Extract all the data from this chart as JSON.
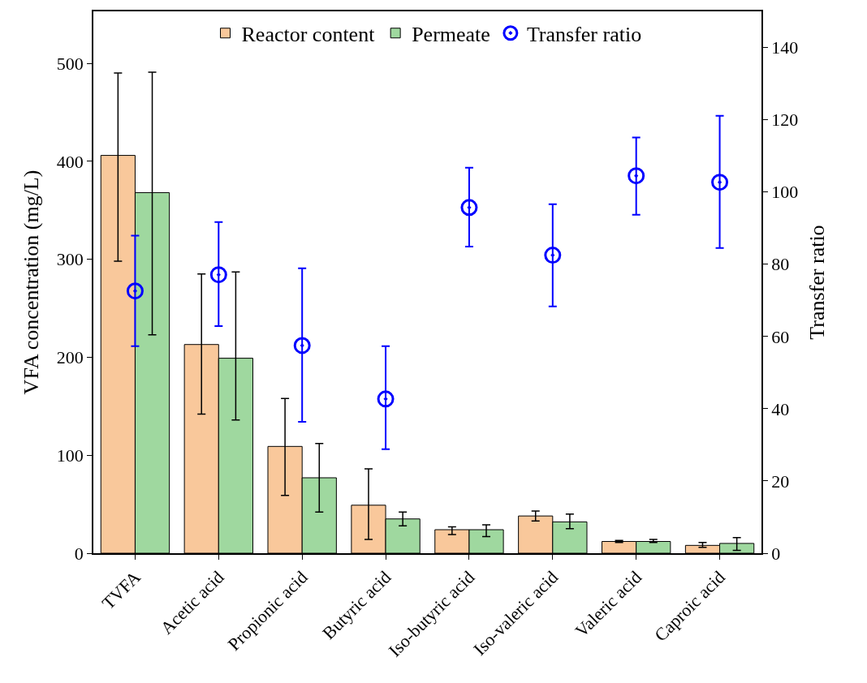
{
  "chart_data": {
    "type": "bar",
    "ylabel": "VFA concentration (mg/L)",
    "y2label": "Transfer ratio",
    "categories": [
      "TVFA",
      "Acetic acid",
      "Propionic acid",
      "Butyric acid",
      "Iso-butyric acid",
      "Iso-valeric acid",
      "Valeric acid",
      "Caproic acid"
    ],
    "series": [
      {
        "name": "Reactor content",
        "color": "#f9c89b",
        "values": [
          406,
          213,
          109,
          49,
          24,
          38,
          12,
          8
        ],
        "errors": [
          [
            298,
            490
          ],
          [
            142,
            285
          ],
          [
            59,
            158
          ],
          [
            14,
            86
          ],
          [
            19,
            27
          ],
          [
            33,
            43
          ],
          [
            11,
            13
          ],
          [
            6,
            11
          ]
        ]
      },
      {
        "name": "Permeate",
        "color": "#9fd89f",
        "values": [
          368,
          199,
          77,
          35,
          24,
          32,
          12,
          10
        ],
        "errors": [
          [
            223,
            491
          ],
          [
            136,
            287
          ],
          [
            42,
            112
          ],
          [
            28,
            42
          ],
          [
            17,
            29
          ],
          [
            25,
            40
          ],
          [
            11,
            14
          ],
          [
            3,
            16
          ]
        ]
      },
      {
        "name": "Transfer ratio",
        "type": "scatter",
        "axis": "y2",
        "color": "#0000ff",
        "marker": "circle",
        "values": [
          72.6,
          77.1,
          57.5,
          42.7,
          95.7,
          82.5,
          104.5,
          102.7
        ],
        "errors": [
          [
            57.3,
            87.9
          ],
          [
            62.9,
            91.7
          ],
          [
            36.4,
            78.9
          ],
          [
            28.8,
            57.3
          ],
          [
            84.9,
            106.7
          ],
          [
            68.3,
            96.6
          ],
          [
            93.7,
            115.1
          ],
          [
            84.5,
            121.1
          ]
        ]
      }
    ],
    "ylim": [
      0,
      553
    ],
    "yticks": [
      0,
      100,
      200,
      300,
      400,
      500
    ],
    "y2lim": [
      0,
      150
    ],
    "y2ticks": [
      0,
      20,
      40,
      60,
      80,
      100,
      120,
      140
    ],
    "legend": "top"
  }
}
